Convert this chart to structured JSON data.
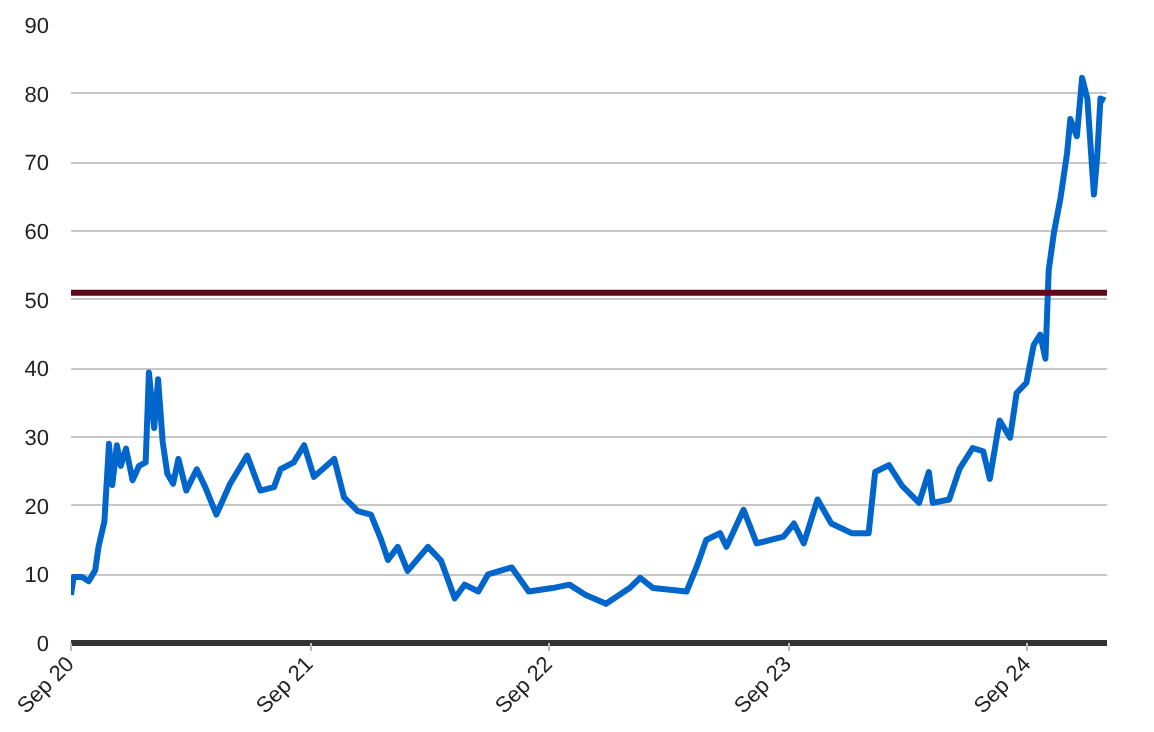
{
  "chart_data": {
    "type": "line",
    "x": [
      "2020-09-01",
      "2020-09-05",
      "2020-09-18",
      "2020-09-28",
      "2020-10-08",
      "2020-10-13",
      "2020-10-22",
      "2020-10-29",
      "2020-11-03",
      "2020-11-10",
      "2020-11-16",
      "2020-11-24",
      "2020-12-04",
      "2020-12-14",
      "2020-12-24",
      "2020-12-29",
      "2021-01-06",
      "2021-01-12",
      "2021-01-19",
      "2021-01-26",
      "2021-02-04",
      "2021-02-12",
      "2021-02-24",
      "2021-03-12",
      "2021-03-25",
      "2021-04-11",
      "2021-05-02",
      "2021-05-28",
      "2021-06-17",
      "2021-07-08",
      "2021-07-18",
      "2021-08-07",
      "2021-08-23",
      "2021-09-07",
      "2021-10-08",
      "2021-10-23",
      "2021-11-13",
      "2021-12-03",
      "2021-12-18",
      "2021-12-29",
      "2022-01-13",
      "2022-01-28",
      "2022-02-28",
      "2022-03-20",
      "2022-04-10",
      "2022-04-25",
      "2022-05-16",
      "2022-05-31",
      "2022-07-06",
      "2022-08-01",
      "2022-09-06",
      "2022-10-02",
      "2022-10-27",
      "2022-11-27",
      "2023-01-02",
      "2023-01-18",
      "2023-02-07",
      "2023-03-30",
      "2023-04-14",
      "2023-04-29",
      "2023-05-20",
      "2023-05-30",
      "2023-06-25",
      "2023-07-15",
      "2023-08-25",
      "2023-09-10",
      "2023-09-25",
      "2023-10-16",
      "2023-11-06",
      "2023-12-07",
      "2024-01-02",
      "2024-01-12",
      "2024-02-02",
      "2024-02-22",
      "2024-03-19",
      "2024-04-03",
      "2024-04-09",
      "2024-05-04",
      "2024-05-20",
      "2024-06-09",
      "2024-06-25",
      "2024-07-05",
      "2024-07-20",
      "2024-08-05",
      "2024-08-15",
      "2024-08-30",
      "2024-09-10",
      "2024-09-20",
      "2024-09-28",
      "2024-10-03",
      "2024-10-11",
      "2024-10-21",
      "2024-10-31",
      "2024-11-05",
      "2024-11-15",
      "2024-11-23",
      "2024-12-01",
      "2024-12-11",
      "2024-12-16",
      "2024-12-21",
      "2024-12-28"
    ],
    "series": [
      {
        "color": "#0066cc",
        "values": [
          7,
          9.6,
          9.6,
          9,
          10.6,
          14,
          17.7,
          29,
          23,
          28.8,
          25.8,
          28.3,
          23.7,
          25.8,
          26.3,
          39.4,
          31.3,
          38.4,
          29.3,
          24.7,
          23.2,
          26.8,
          22.2,
          25.3,
          22.7,
          18.7,
          23.2,
          27.3,
          22.2,
          22.7,
          25.3,
          26.3,
          28.8,
          24.2,
          26.8,
          21.2,
          19.2,
          18.7,
          15.2,
          12.1,
          14,
          10.5,
          14,
          12,
          6.5,
          8.5,
          7.5,
          10,
          11,
          7.5,
          8,
          8.5,
          7,
          5.7,
          8,
          9.5,
          8,
          7.5,
          11,
          15,
          16,
          14,
          19.4,
          14.5,
          15.5,
          17.4,
          14.5,
          20.9,
          17.4,
          16,
          16,
          24.9,
          25.9,
          22.9,
          20.4,
          24.9,
          20.4,
          20.9,
          25.4,
          28.4,
          27.9,
          23.9,
          32.4,
          29.9,
          36.4,
          37.9,
          43.4,
          44.9,
          41.4,
          54.3,
          59.8,
          64.8,
          71.3,
          76.3,
          73.8,
          82.3,
          79.3,
          65.3,
          70.8,
          79.3,
          79
        ]
      }
    ],
    "xlim": [
      "2020-09-01",
      "2024-12-31"
    ],
    "xticks": [
      {
        "value": "2020-09-01",
        "label": "Sep 20"
      },
      {
        "value": "2021-09-01",
        "label": "Sep 21"
      },
      {
        "value": "2022-09-01",
        "label": "Sep 22"
      },
      {
        "value": "2023-09-01",
        "label": "Sep 23"
      },
      {
        "value": "2024-09-01",
        "label": "Sep 24"
      }
    ],
    "ylim": [
      0,
      90
    ],
    "yticks": [
      0,
      10,
      20,
      30,
      40,
      50,
      60,
      70,
      80,
      90
    ],
    "grid": "y",
    "marker": "none",
    "line_style": "solid",
    "ref_lines": [
      {
        "axis": "y",
        "value": 51,
        "color": "#5c0a1e"
      }
    ]
  }
}
